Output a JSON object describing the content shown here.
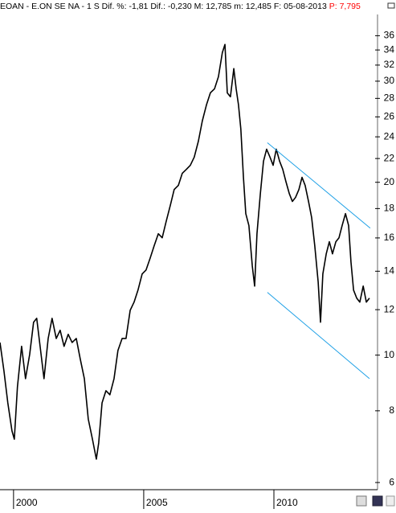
{
  "chart_data": {
    "type": "line",
    "title": "EOAN - E.ON SE NA - 1 S",
    "header_items": [
      "Dif. %: -1,81",
      "Dif.: -0,230",
      "M: 12,785",
      "m: 12,485",
      "F: 05-08-2013"
    ],
    "price_label": "P: 7,795",
    "price_color": "#ff0000",
    "log_scale": true,
    "xlim": [
      1999.48,
      2013.98
    ],
    "xticks": [
      2000,
      2005,
      2010
    ],
    "ylim": [
      5.83,
      39.2
    ],
    "yticks": [
      6,
      8,
      10,
      12,
      14,
      16,
      18,
      20,
      22,
      24,
      26,
      28,
      30,
      32,
      34,
      36
    ],
    "series": [
      {
        "color": "#000000",
        "x": [
          1999.48,
          1999.63,
          1999.78,
          1999.94,
          2000.03,
          2000.15,
          2000.31,
          2000.46,
          2000.62,
          2000.77,
          2000.89,
          2001.02,
          2001.17,
          2001.33,
          2001.48,
          2001.64,
          2001.79,
          2001.94,
          2002.1,
          2002.25,
          2002.41,
          2002.56,
          2002.72,
          2002.87,
          2003.03,
          2003.18,
          2003.27,
          2003.4,
          2003.55,
          2003.7,
          2003.86,
          2004.01,
          2004.17,
          2004.32,
          2004.48,
          2004.63,
          2004.78,
          2004.94,
          2005.09,
          2005.25,
          2005.4,
          2005.56,
          2005.71,
          2005.86,
          2006.02,
          2006.17,
          2006.33,
          2006.48,
          2006.64,
          2006.79,
          2006.94,
          2007.1,
          2007.25,
          2007.41,
          2007.56,
          2007.72,
          2007.87,
          2008.02,
          2008.12,
          2008.21,
          2008.33,
          2008.46,
          2008.55,
          2008.64,
          2008.73,
          2008.83,
          2008.92,
          2009.04,
          2009.17,
          2009.26,
          2009.35,
          2009.48,
          2009.6,
          2009.72,
          2009.85,
          2009.97,
          2010.09,
          2010.22,
          2010.34,
          2010.46,
          2010.59,
          2010.71,
          2010.83,
          2010.96,
          2011.08,
          2011.2,
          2011.33,
          2011.45,
          2011.57,
          2011.7,
          2011.79,
          2011.88,
          2012.01,
          2012.13,
          2012.25,
          2012.38,
          2012.5,
          2012.62,
          2012.75,
          2012.87,
          2012.96,
          2013.06,
          2013.18,
          2013.3,
          2013.43,
          2013.55,
          2013.67
        ],
        "values": [
          10.52,
          9.4,
          8.26,
          7.38,
          7.14,
          8.81,
          10.36,
          9.1,
          10.03,
          11.41,
          11.59,
          10.36,
          9.1,
          10.69,
          11.59,
          10.69,
          11.05,
          10.36,
          10.87,
          10.52,
          10.69,
          9.86,
          9.1,
          7.74,
          7.14,
          6.59,
          7.03,
          8.26,
          8.67,
          8.53,
          9.1,
          10.19,
          10.69,
          10.69,
          11.97,
          12.37,
          12.98,
          13.85,
          14.07,
          14.77,
          15.5,
          16.27,
          16.01,
          17.08,
          18.22,
          19.43,
          19.75,
          20.73,
          21.07,
          21.41,
          22.12,
          23.59,
          25.57,
          27.28,
          28.63,
          29.1,
          30.55,
          33.65,
          34.76,
          28.63,
          28.18,
          31.55,
          29.1,
          27.28,
          24.76,
          20.4,
          17.64,
          16.81,
          14.3,
          13.19,
          16.27,
          19.12,
          21.76,
          22.84,
          22.12,
          21.41,
          22.84,
          21.76,
          21.07,
          20.07,
          19.12,
          18.52,
          18.82,
          19.43,
          20.4,
          19.75,
          18.52,
          17.36,
          15.5,
          13.41,
          11.41,
          13.85,
          15.01,
          15.76,
          15.01,
          15.76,
          16.01,
          16.81,
          17.64,
          16.81,
          14.53,
          12.98,
          12.57,
          12.37,
          13.19,
          12.37,
          12.57
        ]
      }
    ],
    "trendlines": [
      {
        "color": "#1ea0e6",
        "x": [
          2009.75,
          2013.7
        ],
        "y": [
          23.44,
          16.64
        ]
      },
      {
        "color": "#1ea0e6",
        "x": [
          2009.75,
          2013.67
        ],
        "y": [
          12.86,
          9.1
        ]
      }
    ]
  }
}
